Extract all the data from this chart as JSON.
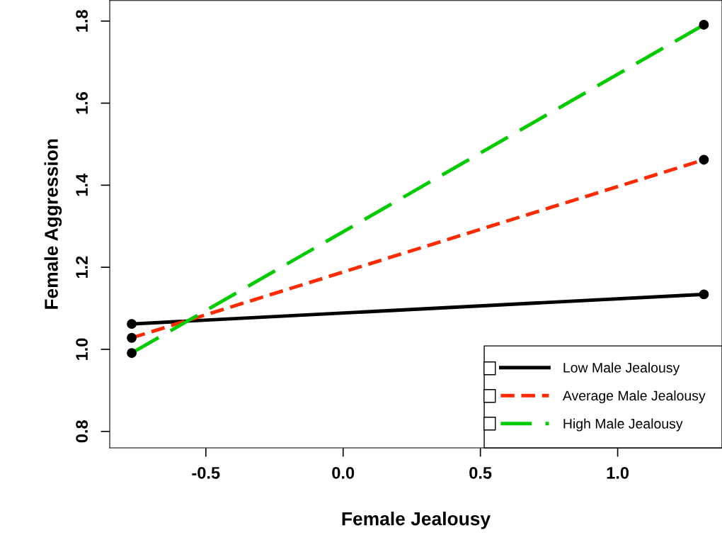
{
  "chart_data": {
    "type": "line",
    "xlabel": "Female Jealousy",
    "ylabel": "Female Aggression",
    "xlim": [
      -0.85,
      1.38
    ],
    "ylim": [
      0.76,
      1.85
    ],
    "xticks": [
      {
        "value": -0.5,
        "label": "-0.5"
      },
      {
        "value": 0,
        "label": "0.0"
      },
      0.5,
      {
        "value": 1,
        "label": "1.0"
      }
    ],
    "yticks": [
      0.8,
      {
        "value": 1,
        "label": "1.0"
      },
      1.2,
      1.4,
      1.6,
      1.8
    ],
    "x": [
      -0.77,
      1.314
    ],
    "marker": "circle",
    "grid": false,
    "legend": "bottom right",
    "series": [
      {
        "name": "Low Male Jealousy",
        "color": "#000000",
        "line_style": "solid",
        "values": [
          1.062,
          1.134
        ]
      },
      {
        "name": "Average Male Jealousy",
        "color": "#ff2a00",
        "line_style": "dashed",
        "values": [
          1.028,
          1.462
        ]
      },
      {
        "name": "High Male Jealousy",
        "color": "#00cc00",
        "line_style": "dashed",
        "values": [
          0.991,
          1.791
        ]
      }
    ]
  }
}
